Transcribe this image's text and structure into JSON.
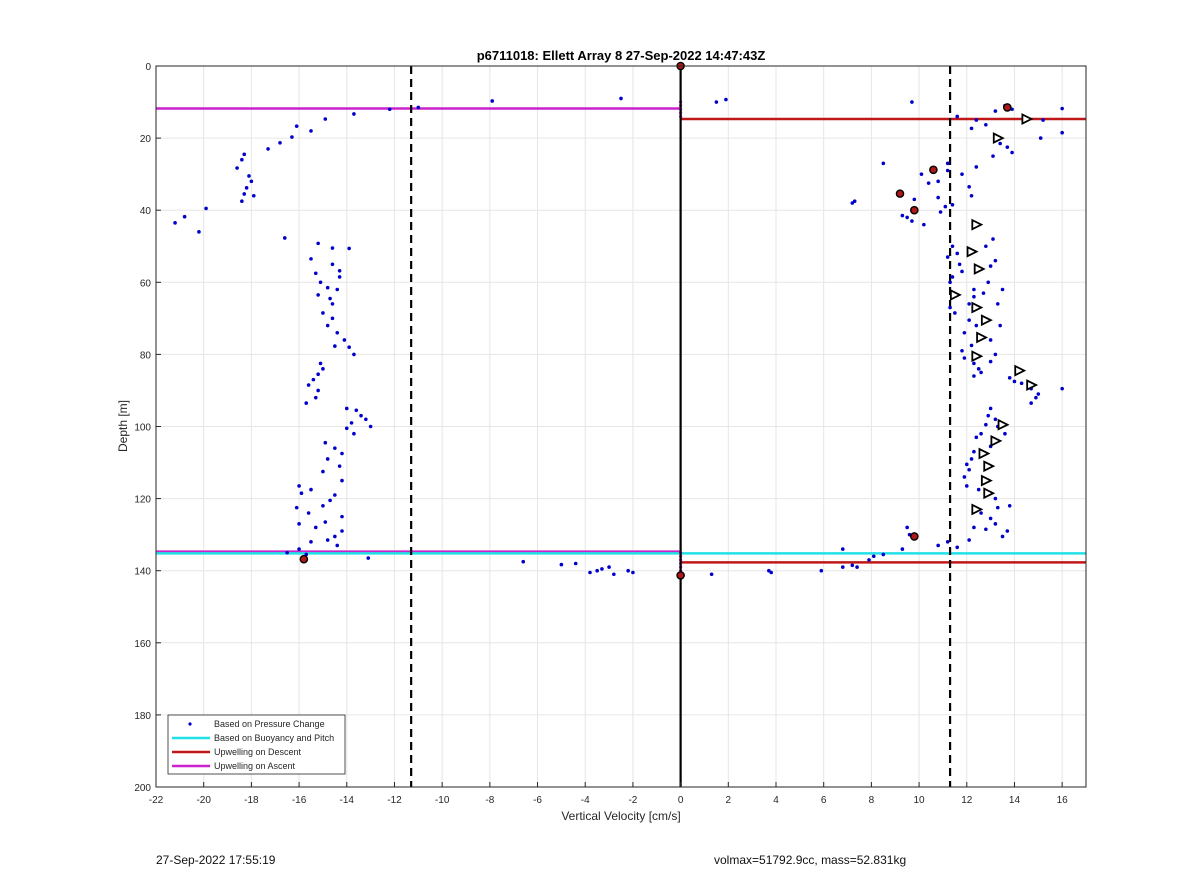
{
  "footer": {
    "timestamp": "27-Sep-2022 17:55:19",
    "summary": "volmax=51792.9cc, mass=52.831kg"
  },
  "chart_data": {
    "type": "scatter",
    "title": "p6711018: Ellett Array 8 27-Sep-2022 14:47:43Z",
    "xlabel": "Vertical Velocity [cm/s]",
    "ylabel": "Depth [m]",
    "xlim": [
      -22,
      17
    ],
    "ylim": [
      0,
      200
    ],
    "y_reversed": true,
    "grid": true,
    "xticks": [
      -22,
      -20,
      -18,
      -16,
      -14,
      -12,
      -10,
      -8,
      -6,
      -4,
      -2,
      0,
      2,
      4,
      6,
      8,
      10,
      12,
      14,
      16
    ],
    "yticks": [
      0,
      20,
      40,
      60,
      80,
      100,
      120,
      140,
      160,
      180,
      200
    ],
    "legend": {
      "position": "bottom-left",
      "entries": [
        {
          "label": "Based on Pressure Change",
          "style": "dot",
          "color": "#0000cc"
        },
        {
          "label": "Based on Buoyancy and Pitch",
          "style": "line",
          "color": "#22e0e8"
        },
        {
          "label": "Upwelling on Descent",
          "style": "line",
          "color": "#c01818"
        },
        {
          "label": "Upwelling on Ascent",
          "style": "line",
          "color": "#cc22cc"
        }
      ]
    },
    "colors": {
      "pressure": "#0000cc",
      "buoyancy": "#22e0e8",
      "descent": "#c01818",
      "ascent": "#cc22cc",
      "vertical": "#000000",
      "grid": "#e6e6e6"
    },
    "vertical_lines": [
      {
        "x": -11.3,
        "style": "dashed"
      },
      {
        "x": 0,
        "style": "solid"
      },
      {
        "x": 11.3,
        "style": "dashed"
      }
    ],
    "series": [
      {
        "name": "Based on Pressure Change",
        "kind": "points",
        "points": [
          [
            -21.2,
            43.5
          ],
          [
            -20.8,
            41.8
          ],
          [
            -20.2,
            46
          ],
          [
            -19.9,
            39.5
          ],
          [
            -18.6,
            28.3
          ],
          [
            -18.4,
            26
          ],
          [
            -18.3,
            24.5
          ],
          [
            -18.2,
            33.8
          ],
          [
            -18.1,
            30.5
          ],
          [
            -18,
            32
          ],
          [
            -18.3,
            35.5
          ],
          [
            -18.4,
            37.5
          ],
          [
            -17.9,
            36
          ],
          [
            -17.3,
            23
          ],
          [
            -16.8,
            21.3
          ],
          [
            -16.3,
            19.7
          ],
          [
            -16.1,
            16.7
          ],
          [
            -15.5,
            18
          ],
          [
            -14.9,
            14.7
          ],
          [
            -16.6,
            47.7
          ],
          [
            -13.7,
            13.3
          ],
          [
            -12.2,
            12
          ],
          [
            -11,
            11.5
          ],
          [
            -7.9,
            9.7
          ],
          [
            -2.5,
            9
          ],
          [
            1.5,
            10
          ],
          [
            1.9,
            9.3
          ],
          [
            9.7,
            10
          ],
          [
            -15.2,
            49.2
          ],
          [
            -14.6,
            50.5
          ],
          [
            -13.9,
            50.6
          ],
          [
            -15.5,
            53.5
          ],
          [
            -14.6,
            55
          ],
          [
            -14.3,
            56.8
          ],
          [
            -14.3,
            58.5
          ],
          [
            -15.3,
            57.5
          ],
          [
            -15.1,
            60
          ],
          [
            -14.8,
            61.5
          ],
          [
            -14.4,
            62
          ],
          [
            -15.2,
            63.5
          ],
          [
            -14.7,
            64.5
          ],
          [
            -14.6,
            66
          ],
          [
            -15,
            68.5
          ],
          [
            -14.6,
            70
          ],
          [
            -14.8,
            72
          ],
          [
            -14.4,
            74
          ],
          [
            -14.1,
            76
          ],
          [
            -14.5,
            77.7
          ],
          [
            -13.9,
            78
          ],
          [
            -13.7,
            80
          ],
          [
            -15.1,
            82.5
          ],
          [
            -15,
            84
          ],
          [
            -15.2,
            85.5
          ],
          [
            -15.4,
            87
          ],
          [
            -15.6,
            88.5
          ],
          [
            -15.2,
            90
          ],
          [
            -15.3,
            92
          ],
          [
            -15.7,
            93.5
          ],
          [
            -14,
            95
          ],
          [
            -13.6,
            95.5
          ],
          [
            -13.4,
            97
          ],
          [
            -13.2,
            98
          ],
          [
            -13.8,
            99
          ],
          [
            -13,
            100
          ],
          [
            -14,
            100.5
          ],
          [
            -13.7,
            102
          ],
          [
            -14.9,
            104.5
          ],
          [
            -14.5,
            106
          ],
          [
            -14.2,
            107.5
          ],
          [
            -14.8,
            109
          ],
          [
            -14.3,
            111
          ],
          [
            -15,
            112.5
          ],
          [
            -14.2,
            115
          ],
          [
            -16,
            116.5
          ],
          [
            -15.5,
            117.5
          ],
          [
            -15.9,
            118.5
          ],
          [
            -14.5,
            119
          ],
          [
            -14.7,
            120.5
          ],
          [
            -15,
            122
          ],
          [
            -16.1,
            122.5
          ],
          [
            -15.6,
            124
          ],
          [
            -14.2,
            125
          ],
          [
            -14.9,
            126.5
          ],
          [
            -16,
            127
          ],
          [
            -15.3,
            128
          ],
          [
            -14.2,
            129
          ],
          [
            -14.5,
            130.5
          ],
          [
            -14.8,
            131.5
          ],
          [
            -15.5,
            132
          ],
          [
            -14.4,
            133
          ],
          [
            -16,
            134
          ],
          [
            -15.7,
            135.5
          ],
          [
            -16.5,
            135
          ],
          [
            -13.1,
            136.5
          ],
          [
            -6.6,
            137.5
          ],
          [
            -5,
            138.3
          ],
          [
            -4.4,
            138
          ],
          [
            -3.8,
            140.5
          ],
          [
            -3.5,
            140
          ],
          [
            -3.3,
            139.5
          ],
          [
            -3,
            139
          ],
          [
            -2.8,
            141
          ],
          [
            -2.2,
            140
          ],
          [
            -2,
            140.5
          ],
          [
            1.3,
            141
          ],
          [
            3.8,
            140.5
          ],
          [
            3.7,
            140
          ],
          [
            5.9,
            140
          ],
          [
            6.8,
            139
          ],
          [
            7.2,
            138.5
          ],
          [
            7.4,
            139
          ],
          [
            7.9,
            137
          ],
          [
            8.1,
            136
          ],
          [
            8.5,
            135.5
          ],
          [
            6.8,
            134
          ],
          [
            9.5,
            128
          ],
          [
            9.6,
            130
          ],
          [
            10.8,
            133
          ],
          [
            9.3,
            134
          ],
          [
            13.2,
            12.5
          ],
          [
            13.6,
            11
          ],
          [
            13.9,
            12
          ],
          [
            16,
            11.8
          ],
          [
            15.2,
            15
          ],
          [
            16,
            18.5
          ],
          [
            15.1,
            20
          ],
          [
            13.4,
            21.5
          ],
          [
            13.7,
            22.5
          ],
          [
            13.9,
            24
          ],
          [
            13.1,
            25
          ],
          [
            12.4,
            15
          ],
          [
            11.6,
            14
          ],
          [
            12.2,
            17.3
          ],
          [
            12.8,
            16.3
          ],
          [
            8.5,
            27
          ],
          [
            10.1,
            30
          ],
          [
            10.8,
            32
          ],
          [
            10.4,
            32.5
          ],
          [
            11.2,
            27
          ],
          [
            11.2,
            29
          ],
          [
            11.8,
            30
          ],
          [
            12.4,
            28
          ],
          [
            12.1,
            33.5
          ],
          [
            10.8,
            36.5
          ],
          [
            9.8,
            37
          ],
          [
            9.5,
            42
          ],
          [
            9.3,
            41.5
          ],
          [
            9.7,
            43
          ],
          [
            7.3,
            37.5
          ],
          [
            7.2,
            38
          ],
          [
            11.4,
            38.5
          ],
          [
            11.1,
            39
          ],
          [
            10.9,
            40.5
          ],
          [
            12.2,
            36
          ],
          [
            10.2,
            44
          ],
          [
            11.4,
            50
          ],
          [
            11.6,
            52
          ],
          [
            11.2,
            53
          ],
          [
            11.7,
            55
          ],
          [
            11.8,
            57
          ],
          [
            11.4,
            58.5
          ],
          [
            11.3,
            60
          ],
          [
            12.3,
            62
          ],
          [
            12.3,
            64
          ],
          [
            12.1,
            66
          ],
          [
            11.3,
            67
          ],
          [
            11.5,
            68.5
          ],
          [
            12.1,
            70.5
          ],
          [
            12.4,
            72
          ],
          [
            11.9,
            74
          ],
          [
            12.6,
            75.5
          ],
          [
            12.2,
            77.5
          ],
          [
            11.8,
            79
          ],
          [
            11.9,
            81
          ],
          [
            12.3,
            82.5
          ],
          [
            12.5,
            84
          ],
          [
            12.6,
            85
          ],
          [
            12.3,
            86
          ],
          [
            12.8,
            50
          ],
          [
            13.1,
            48
          ],
          [
            13.2,
            54
          ],
          [
            13,
            55.5
          ],
          [
            12.9,
            60
          ],
          [
            12.7,
            63
          ],
          [
            13.5,
            62
          ],
          [
            13.3,
            66
          ],
          [
            13.4,
            72
          ],
          [
            13,
            76
          ],
          [
            13.2,
            80
          ],
          [
            13,
            82
          ],
          [
            13.8,
            86.5
          ],
          [
            14,
            87.5
          ],
          [
            14.3,
            88
          ],
          [
            14.7,
            89.5
          ],
          [
            15,
            91
          ],
          [
            14.9,
            92
          ],
          [
            14.7,
            93.5
          ],
          [
            16,
            89.5
          ],
          [
            13,
            95
          ],
          [
            12.9,
            97
          ],
          [
            13.2,
            98
          ],
          [
            12.8,
            99.5
          ],
          [
            13.3,
            100
          ],
          [
            13.6,
            102
          ],
          [
            12.6,
            102
          ],
          [
            12.4,
            103
          ],
          [
            13.1,
            104
          ],
          [
            13,
            105.5
          ],
          [
            12.3,
            107
          ],
          [
            12.2,
            109
          ],
          [
            12,
            110.5
          ],
          [
            12.1,
            112
          ],
          [
            11.9,
            114
          ],
          [
            12,
            116.5
          ],
          [
            12.5,
            117.5
          ],
          [
            12.8,
            119
          ],
          [
            13.2,
            120
          ],
          [
            13.3,
            122.5
          ],
          [
            13.8,
            122
          ],
          [
            12.6,
            124
          ],
          [
            13,
            125.5
          ],
          [
            13.2,
            127
          ],
          [
            13.7,
            129
          ],
          [
            12.3,
            128
          ],
          [
            12.8,
            128.5
          ],
          [
            13.5,
            130.5
          ],
          [
            11.2,
            132
          ],
          [
            12.1,
            131.5
          ],
          [
            11.6,
            133.5
          ]
        ]
      },
      {
        "name": "Triangle markers",
        "kind": "triangles",
        "points": [
          [
            14.5,
            14.7
          ],
          [
            13.3,
            20
          ],
          [
            12.4,
            44
          ],
          [
            12.2,
            51.5
          ],
          [
            12.5,
            56.3
          ],
          [
            11.5,
            63.5
          ],
          [
            12.4,
            67
          ],
          [
            12.8,
            70.5
          ],
          [
            12.6,
            75.3
          ],
          [
            12.4,
            80.5
          ],
          [
            14.2,
            84.5
          ],
          [
            14.7,
            88.5
          ],
          [
            13.5,
            99.5
          ],
          [
            13.2,
            104
          ],
          [
            12.7,
            107.5
          ],
          [
            12.9,
            111
          ],
          [
            12.8,
            115
          ],
          [
            12.9,
            118.5
          ],
          [
            12.4,
            123
          ]
        ]
      },
      {
        "name": "Red markers",
        "kind": "redpoints",
        "points": [
          [
            0,
            0
          ],
          [
            13.7,
            11.5
          ],
          [
            10.6,
            28.8
          ],
          [
            9.2,
            35.4
          ],
          [
            9.8,
            40
          ],
          [
            9.8,
            130.5
          ],
          [
            -15.8,
            136.8
          ],
          [
            0,
            141.3
          ]
        ]
      },
      {
        "name": "Upwelling on Ascent",
        "kind": "hline",
        "color": "#cc22cc",
        "segments": [
          {
            "y": 11.8,
            "x1": -22,
            "x2": 0
          },
          {
            "y": 134.7,
            "x1": -22,
            "x2": 0
          }
        ]
      },
      {
        "name": "Based on Buoyancy and Pitch",
        "kind": "hline",
        "color": "#22e0e8",
        "segments": [
          {
            "y": 135.2,
            "x1": -22,
            "x2": 0
          },
          {
            "y": 135.2,
            "x1": 0,
            "x2": 17
          }
        ]
      },
      {
        "name": "Upwelling on Descent",
        "kind": "hline",
        "color": "#c01818",
        "segments": [
          {
            "y": 14.7,
            "x1": 0,
            "x2": 17
          },
          {
            "y": 137.7,
            "x1": 0,
            "x2": 17
          }
        ]
      }
    ]
  }
}
